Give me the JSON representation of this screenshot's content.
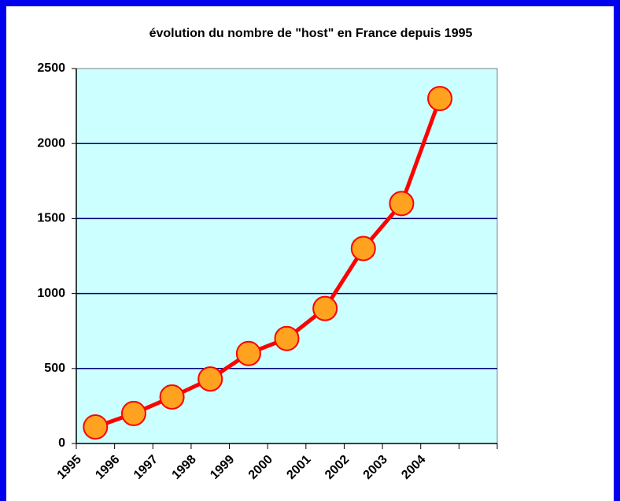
{
  "chart_data": {
    "type": "line",
    "title": "évolution du nombre de \"host\" en France depuis 1995",
    "categories": [
      "1995",
      "1996",
      "1997",
      "1998",
      "1999",
      "2000",
      "2001",
      "2002",
      "2003",
      "2004",
      null
    ],
    "series": [
      {
        "name": "host",
        "color": "#ff0000",
        "marker_color": "#ffa21f",
        "values": [
          110,
          200,
          310,
          430,
          600,
          700,
          900,
          1300,
          1600,
          2300,
          null
        ]
      }
    ],
    "ylim": [
      0,
      2500
    ],
    "yticks": [
      0,
      500,
      1000,
      1500,
      2000,
      2500
    ],
    "grid": true,
    "plot_background": "#ccffff",
    "grid_color": "#000080"
  }
}
